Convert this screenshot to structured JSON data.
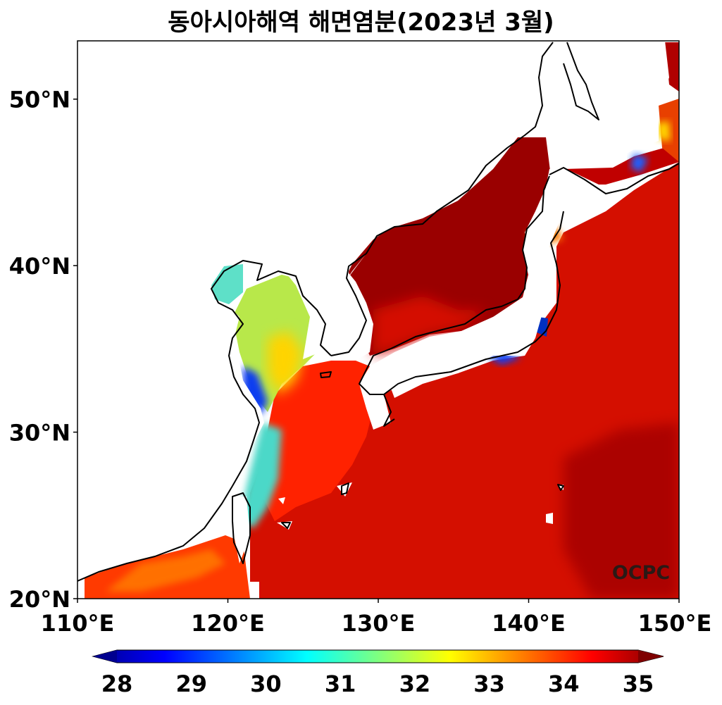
{
  "title": "동아시아해역 해면염분(2023년 3월)",
  "credit": "OCPC",
  "map": {
    "region": "East Asian seas",
    "variable": "sea surface salinity",
    "period": "2023-03",
    "lon_range": [
      110,
      150
    ],
    "lat_range": [
      20,
      53.5
    ],
    "lat_ticks": [
      {
        "value": 50,
        "label": "50°N"
      },
      {
        "value": 40,
        "label": "40°N"
      },
      {
        "value": 30,
        "label": "30°N"
      },
      {
        "value": 20,
        "label": "20°N"
      }
    ],
    "lon_ticks": [
      {
        "value": 110,
        "label": "110°E"
      },
      {
        "value": 120,
        "label": "120°E"
      },
      {
        "value": 130,
        "label": "130°E"
      },
      {
        "value": 140,
        "label": "140°E"
      },
      {
        "value": 150,
        "label": "150°E"
      }
    ]
  },
  "colorbar": {
    "min": 28,
    "max": 35,
    "extend": "both",
    "colormap": "jet",
    "ticks": [
      "28",
      "29",
      "30",
      "31",
      "32",
      "33",
      "34",
      "35"
    ]
  },
  "colors": {
    "land": "#ffffff",
    "coastline": "#000000",
    "open_ocean": "#cc0a00",
    "high_salinity": "#8f0000",
    "coastal_fresh": "#3cc8ff"
  }
}
